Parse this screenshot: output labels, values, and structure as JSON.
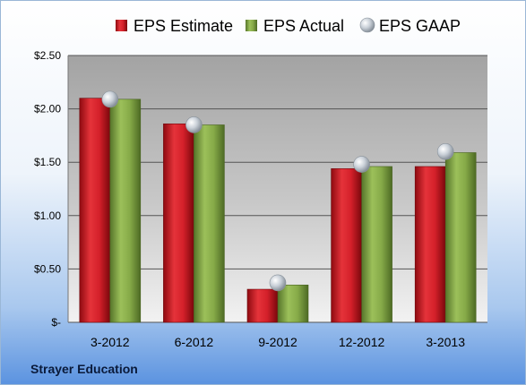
{
  "chart_data": {
    "type": "bar",
    "categories": [
      "3-2012",
      "6-2012",
      "9-2012",
      "12-2012",
      "3-2013"
    ],
    "series": [
      {
        "name": "EPS Estimate",
        "values": [
          2.1,
          1.86,
          0.31,
          1.44,
          1.46
        ],
        "color": "#c0141c"
      },
      {
        "name": "EPS Actual",
        "values": [
          2.09,
          1.85,
          0.35,
          1.46,
          1.59
        ],
        "color": "#7da03c"
      },
      {
        "name": "EPS GAAP",
        "values": [
          2.09,
          1.85,
          0.37,
          1.48,
          1.6
        ],
        "color": "#a8b2bd",
        "marker": "sphere"
      }
    ],
    "ylim": [
      0,
      2.5
    ],
    "yticks": [
      0,
      0.5,
      1.0,
      1.5,
      2.0,
      2.5
    ],
    "ytick_labels": [
      "$-",
      "$0.50",
      "$1.00",
      "$1.50",
      "$2.00",
      "$2.50"
    ],
    "legend_position": "top",
    "grid": true,
    "company": "Strayer Education"
  }
}
